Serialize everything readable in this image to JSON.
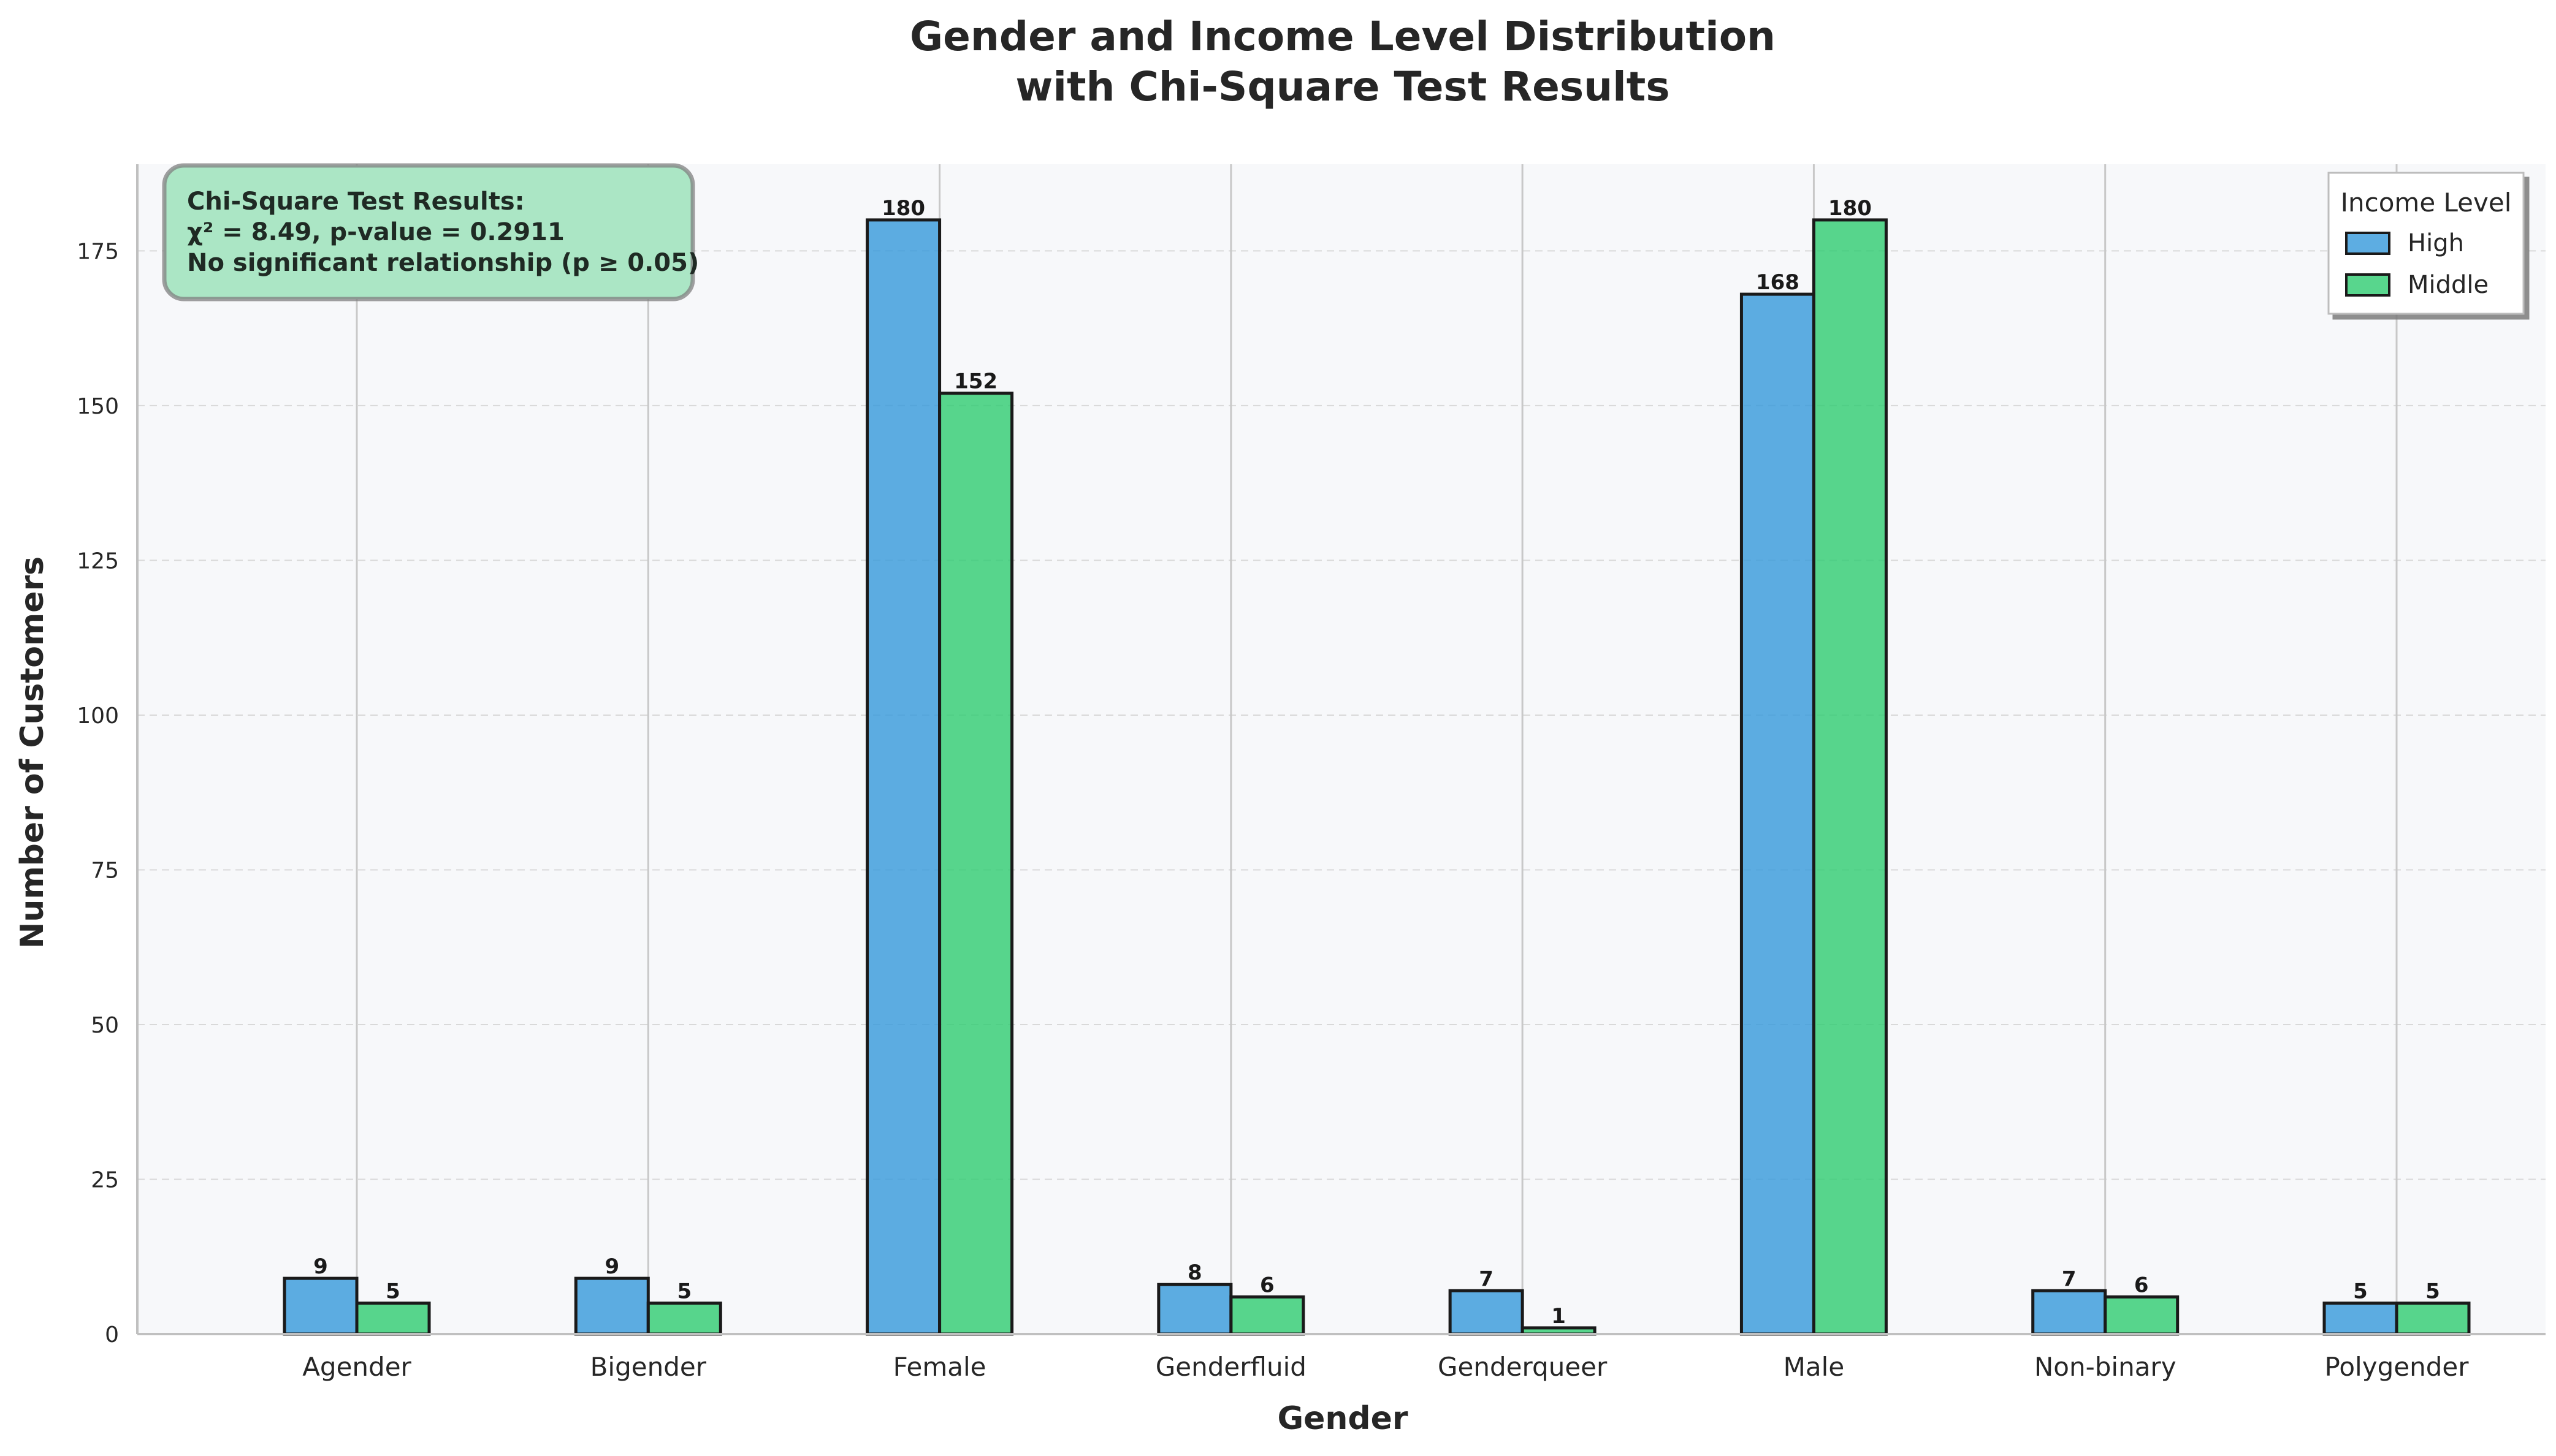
{
  "chart_data": {
    "type": "bar",
    "title": "Gender and Income Level Distribution\nwith Chi-Square Test Results",
    "xlabel": "Gender",
    "ylabel": "Number of Customers",
    "categories": [
      "Agender",
      "Bigender",
      "Female",
      "Genderfluid",
      "Genderqueer",
      "Male",
      "Non-binary",
      "Polygender"
    ],
    "series": [
      {
        "name": "High",
        "color": "#3498db",
        "values": [
          9,
          9,
          180,
          8,
          7,
          168,
          7,
          5
        ]
      },
      {
        "name": "Middle",
        "color": "#2ecc71",
        "values": [
          5,
          5,
          152,
          6,
          1,
          180,
          6,
          5
        ]
      }
    ],
    "ylim": [
      0,
      189
    ],
    "yticks": [
      0,
      25,
      50,
      75,
      100,
      125,
      150,
      175
    ],
    "grid": true,
    "data_labels": true,
    "legend": {
      "title": "Income Level",
      "placement": "top-right"
    },
    "annotation": {
      "lines": [
        "Chi-Square Test Results:",
        "χ² = 8.49, p-value = 0.2911",
        "No significant relationship (p ≥ 0.05)"
      ],
      "placement": "top-left",
      "background_color": "#abe6c5",
      "border_color": "#808080"
    },
    "plot_background": "#f7f8fa"
  }
}
